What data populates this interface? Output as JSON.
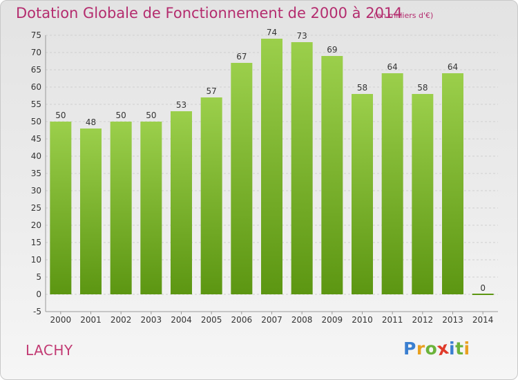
{
  "chart_data": {
    "type": "bar",
    "title": "Dotation Globale de Fonctionnement de 2000 à 2014",
    "unit": "(en milliers d'€)",
    "categories": [
      "2000",
      "2001",
      "2002",
      "2003",
      "2004",
      "2005",
      "2006",
      "2007",
      "2008",
      "2009",
      "2010",
      "2011",
      "2012",
      "2013",
      "2014"
    ],
    "values": [
      50,
      48,
      50,
      50,
      53,
      57,
      67,
      74,
      73,
      69,
      58,
      64,
      58,
      64,
      0
    ],
    "ylim": [
      -5,
      75
    ],
    "yticks": [
      -5,
      0,
      5,
      10,
      15,
      20,
      25,
      30,
      35,
      40,
      45,
      50,
      55,
      60,
      65,
      70,
      75
    ],
    "grid": true,
    "bar_color_top": "#9bcf4b",
    "bar_color_bottom": "#5c9612"
  },
  "commune": "LACHY",
  "logo": {
    "letters": [
      "P",
      "r",
      "o",
      "x",
      "i",
      "t",
      "i"
    ],
    "colors": [
      "#3a7fd0",
      "#e8a020",
      "#6bb33a",
      "#e03a2a",
      "#3a7fd0",
      "#6bb33a",
      "#e8a020"
    ]
  }
}
